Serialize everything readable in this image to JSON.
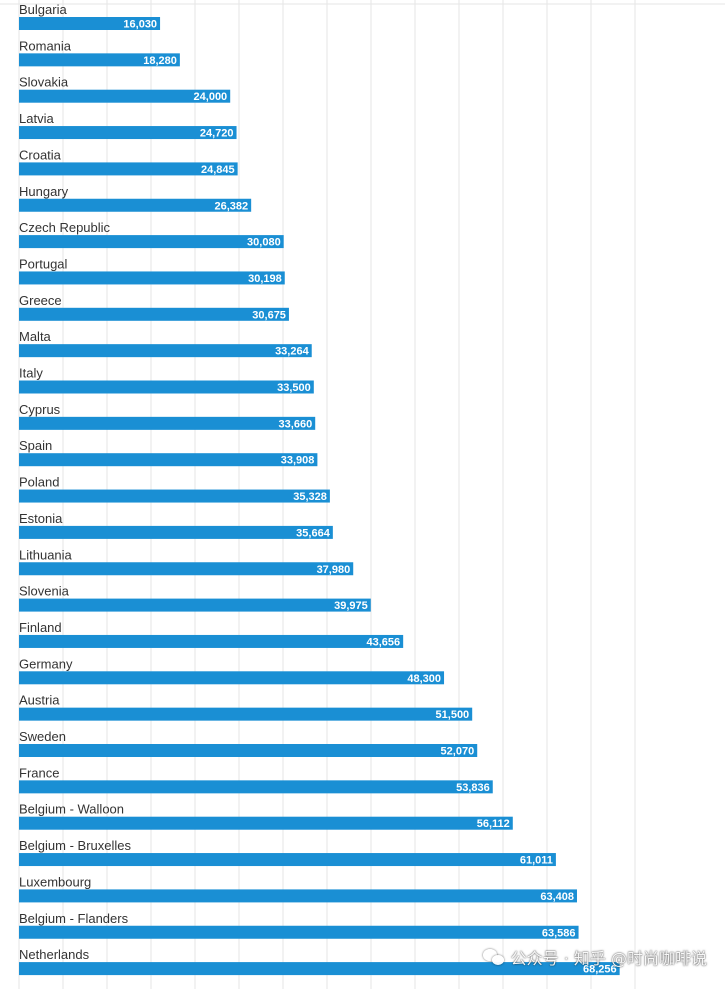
{
  "chart_data": {
    "type": "bar",
    "orientation": "horizontal",
    "title": "",
    "xlabel": "",
    "ylabel": "",
    "xlim": [
      0,
      70000
    ],
    "grid": true,
    "bar_color": "#1a8fd4",
    "value_label_color": "#ffffff",
    "categories": [
      "Bulgaria",
      "Romania",
      "Slovakia",
      "Latvia",
      "Croatia",
      "Hungary",
      "Czech Republic",
      "Portugal",
      "Greece",
      "Malta",
      "Italy",
      "Cyprus",
      "Spain",
      "Poland",
      "Estonia",
      "Lithuania",
      "Slovenia",
      "Finland",
      "Germany",
      "Austria",
      "Sweden",
      "France",
      "Belgium - Walloon",
      "Belgium - Bruxelles",
      "Luxembourg",
      "Belgium - Flanders",
      "Netherlands"
    ],
    "values": [
      16030,
      18280,
      24000,
      24720,
      24845,
      26382,
      30080,
      30198,
      30675,
      33264,
      33500,
      33660,
      33908,
      35328,
      35664,
      37980,
      39975,
      43656,
      48300,
      51500,
      52070,
      53836,
      56112,
      61011,
      63408,
      63586,
      68256
    ],
    "value_labels": [
      "16,030",
      "18,280",
      "24,000",
      "24,720",
      "24,845",
      "26,382",
      "30,080",
      "30,198",
      "30,675",
      "33,264",
      "33,500",
      "33,660",
      "33,908",
      "35,328",
      "35,664",
      "37,980",
      "39,975",
      "43,656",
      "48,300",
      "51,500",
      "52,070",
      "53,836",
      "56,112",
      "61,011",
      "63,408",
      "63,586",
      "68,256"
    ]
  },
  "watermark": {
    "text": "公众号 · 知乎 @时尚咖啡说",
    "icon": "wechat-icon"
  }
}
